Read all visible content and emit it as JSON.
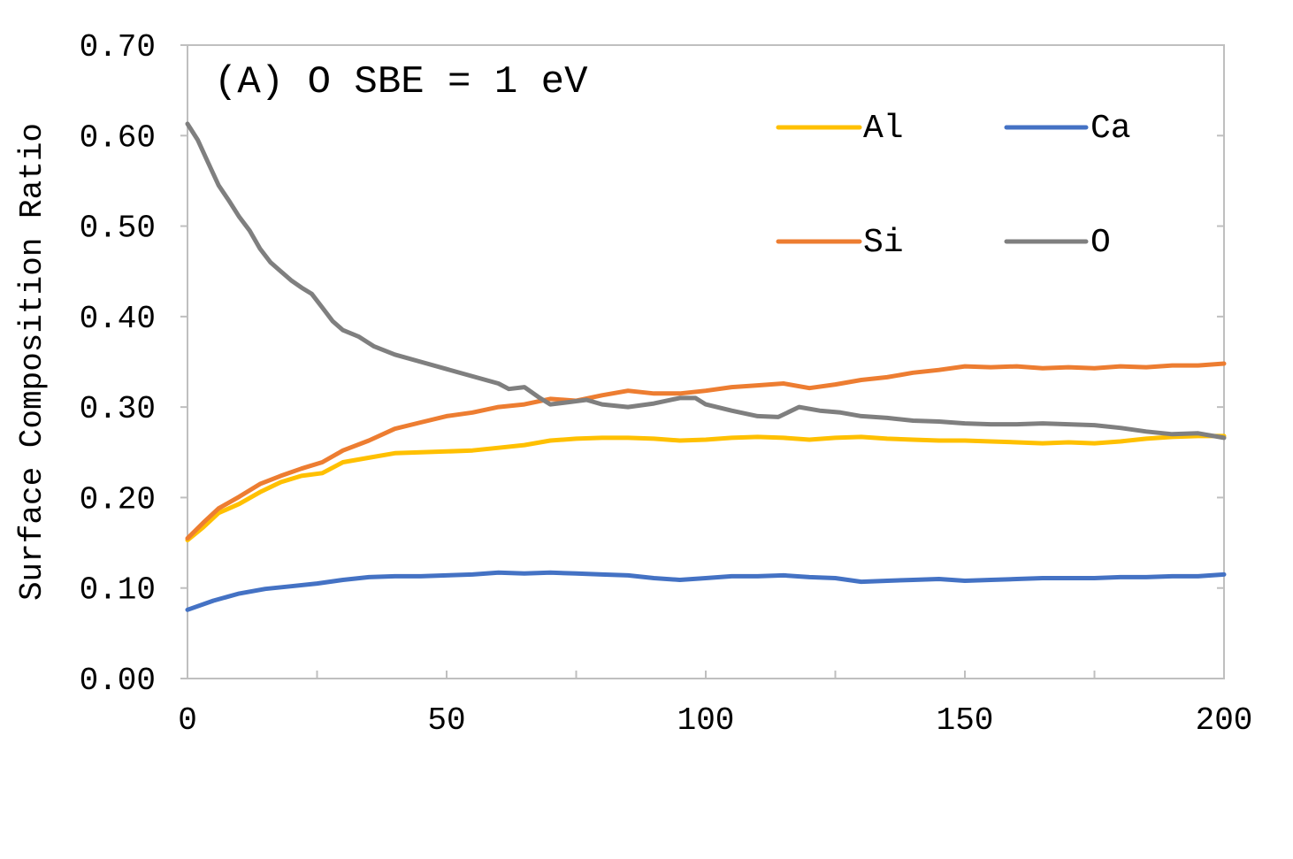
{
  "chart_data": {
    "type": "line",
    "title": "",
    "annotation": "(A) O SBE = 1 eV",
    "xlabel": "",
    "ylabel": "Surface Composition Ratio",
    "xlim": [
      0,
      200
    ],
    "ylim": [
      0,
      0.7
    ],
    "x_ticks": [
      "0",
      "50",
      "100",
      "150",
      "200"
    ],
    "x_tick_values": [
      0,
      50,
      100,
      150,
      200
    ],
    "x_minor_step": 25,
    "y_ticks": [
      "0.00",
      "0.10",
      "0.20",
      "0.30",
      "0.40",
      "0.50",
      "0.60",
      "0.70"
    ],
    "y_tick_values": [
      0,
      0.1,
      0.2,
      0.3,
      0.4,
      0.5,
      0.6,
      0.7
    ],
    "grid": false,
    "legend_placement": "top-right",
    "series": [
      {
        "name": "Al",
        "color": "#FFC000",
        "points": [
          [
            0,
            0.153
          ],
          [
            3,
            0.167
          ],
          [
            6,
            0.183
          ],
          [
            10,
            0.193
          ],
          [
            14,
            0.206
          ],
          [
            18,
            0.217
          ],
          [
            22,
            0.224
          ],
          [
            26,
            0.227
          ],
          [
            30,
            0.239
          ],
          [
            35,
            0.244
          ],
          [
            40,
            0.249
          ],
          [
            45,
            0.25
          ],
          [
            50,
            0.251
          ],
          [
            55,
            0.252
          ],
          [
            60,
            0.255
          ],
          [
            65,
            0.258
          ],
          [
            70,
            0.263
          ],
          [
            75,
            0.265
          ],
          [
            80,
            0.266
          ],
          [
            85,
            0.266
          ],
          [
            90,
            0.265
          ],
          [
            95,
            0.263
          ],
          [
            100,
            0.264
          ],
          [
            105,
            0.266
          ],
          [
            110,
            0.267
          ],
          [
            115,
            0.266
          ],
          [
            120,
            0.264
          ],
          [
            125,
            0.266
          ],
          [
            130,
            0.267
          ],
          [
            135,
            0.265
          ],
          [
            140,
            0.264
          ],
          [
            145,
            0.263
          ],
          [
            150,
            0.263
          ],
          [
            155,
            0.262
          ],
          [
            160,
            0.261
          ],
          [
            165,
            0.26
          ],
          [
            170,
            0.261
          ],
          [
            175,
            0.26
          ],
          [
            180,
            0.262
          ],
          [
            185,
            0.265
          ],
          [
            190,
            0.267
          ],
          [
            195,
            0.268
          ],
          [
            200,
            0.268
          ]
        ]
      },
      {
        "name": "Ca",
        "color": "#4472C4",
        "points": [
          [
            0,
            0.076
          ],
          [
            5,
            0.086
          ],
          [
            10,
            0.094
          ],
          [
            15,
            0.099
          ],
          [
            20,
            0.102
          ],
          [
            25,
            0.105
          ],
          [
            30,
            0.109
          ],
          [
            35,
            0.112
          ],
          [
            40,
            0.113
          ],
          [
            45,
            0.113
          ],
          [
            50,
            0.114
          ],
          [
            55,
            0.115
          ],
          [
            60,
            0.117
          ],
          [
            65,
            0.116
          ],
          [
            70,
            0.117
          ],
          [
            75,
            0.116
          ],
          [
            80,
            0.115
          ],
          [
            85,
            0.114
          ],
          [
            90,
            0.111
          ],
          [
            95,
            0.109
          ],
          [
            100,
            0.111
          ],
          [
            105,
            0.113
          ],
          [
            110,
            0.113
          ],
          [
            115,
            0.114
          ],
          [
            120,
            0.112
          ],
          [
            125,
            0.111
          ],
          [
            130,
            0.107
          ],
          [
            135,
            0.108
          ],
          [
            140,
            0.109
          ],
          [
            145,
            0.11
          ],
          [
            150,
            0.108
          ],
          [
            155,
            0.109
          ],
          [
            160,
            0.11
          ],
          [
            165,
            0.111
          ],
          [
            170,
            0.111
          ],
          [
            175,
            0.111
          ],
          [
            180,
            0.112
          ],
          [
            185,
            0.112
          ],
          [
            190,
            0.113
          ],
          [
            195,
            0.113
          ],
          [
            200,
            0.115
          ]
        ]
      },
      {
        "name": "Si",
        "color": "#ED7D31",
        "points": [
          [
            0,
            0.155
          ],
          [
            3,
            0.172
          ],
          [
            6,
            0.188
          ],
          [
            10,
            0.201
          ],
          [
            14,
            0.215
          ],
          [
            18,
            0.224
          ],
          [
            22,
            0.232
          ],
          [
            26,
            0.239
          ],
          [
            30,
            0.252
          ],
          [
            35,
            0.263
          ],
          [
            40,
            0.276
          ],
          [
            45,
            0.283
          ],
          [
            50,
            0.29
          ],
          [
            55,
            0.294
          ],
          [
            60,
            0.3
          ],
          [
            65,
            0.303
          ],
          [
            70,
            0.309
          ],
          [
            75,
            0.307
          ],
          [
            80,
            0.313
          ],
          [
            85,
            0.318
          ],
          [
            90,
            0.315
          ],
          [
            95,
            0.315
          ],
          [
            100,
            0.318
          ],
          [
            105,
            0.322
          ],
          [
            110,
            0.324
          ],
          [
            115,
            0.326
          ],
          [
            120,
            0.321
          ],
          [
            125,
            0.325
          ],
          [
            130,
            0.33
          ],
          [
            135,
            0.333
          ],
          [
            140,
            0.338
          ],
          [
            145,
            0.341
          ],
          [
            150,
            0.345
          ],
          [
            155,
            0.344
          ],
          [
            160,
            0.345
          ],
          [
            165,
            0.343
          ],
          [
            170,
            0.344
          ],
          [
            175,
            0.343
          ],
          [
            180,
            0.345
          ],
          [
            185,
            0.344
          ],
          [
            190,
            0.346
          ],
          [
            195,
            0.346
          ],
          [
            200,
            0.348
          ]
        ]
      },
      {
        "name": "O",
        "color": "#7F7F7F",
        "points": [
          [
            0,
            0.613
          ],
          [
            2,
            0.595
          ],
          [
            4,
            0.57
          ],
          [
            6,
            0.545
          ],
          [
            8,
            0.528
          ],
          [
            10,
            0.51
          ],
          [
            12,
            0.495
          ],
          [
            14,
            0.475
          ],
          [
            16,
            0.46
          ],
          [
            18,
            0.45
          ],
          [
            20,
            0.44
          ],
          [
            22,
            0.432
          ],
          [
            24,
            0.425
          ],
          [
            26,
            0.41
          ],
          [
            28,
            0.395
          ],
          [
            30,
            0.385
          ],
          [
            33,
            0.378
          ],
          [
            36,
            0.367
          ],
          [
            40,
            0.358
          ],
          [
            45,
            0.35
          ],
          [
            50,
            0.342
          ],
          [
            55,
            0.334
          ],
          [
            60,
            0.326
          ],
          [
            62,
            0.32
          ],
          [
            65,
            0.322
          ],
          [
            68,
            0.31
          ],
          [
            70,
            0.303
          ],
          [
            73,
            0.305
          ],
          [
            77,
            0.308
          ],
          [
            80,
            0.303
          ],
          [
            85,
            0.3
          ],
          [
            90,
            0.304
          ],
          [
            95,
            0.31
          ],
          [
            98,
            0.31
          ],
          [
            100,
            0.303
          ],
          [
            105,
            0.296
          ],
          [
            110,
            0.29
          ],
          [
            114,
            0.289
          ],
          [
            118,
            0.3
          ],
          [
            122,
            0.296
          ],
          [
            126,
            0.294
          ],
          [
            130,
            0.29
          ],
          [
            135,
            0.288
          ],
          [
            140,
            0.285
          ],
          [
            145,
            0.284
          ],
          [
            150,
            0.282
          ],
          [
            155,
            0.281
          ],
          [
            160,
            0.281
          ],
          [
            165,
            0.282
          ],
          [
            170,
            0.281
          ],
          [
            175,
            0.28
          ],
          [
            180,
            0.277
          ],
          [
            185,
            0.273
          ],
          [
            190,
            0.27
          ],
          [
            195,
            0.271
          ],
          [
            200,
            0.266
          ]
        ]
      }
    ]
  }
}
